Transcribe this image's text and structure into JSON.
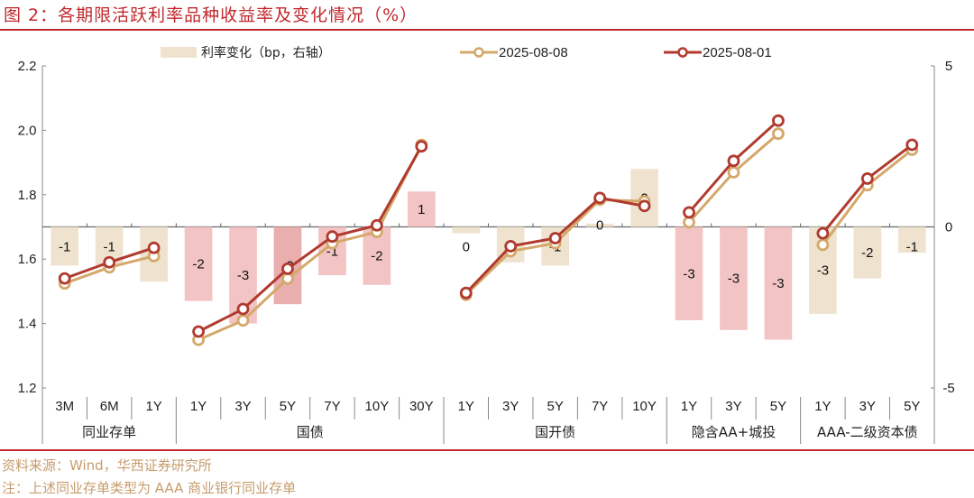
{
  "title": "图 2：各期限活跃利率品种收益率及变化情况（%）",
  "source": "资料来源：Wind，华西证券研究所",
  "note": "注：上述同业存单类型为 AAA 商业银行同业存单",
  "colors": {
    "title_red": "#c0282d",
    "series_0808": "#d4a86a",
    "series_0801": "#b03a2e",
    "bar_neutral": "#efe3d0",
    "bar_pink": "#f2c4c4",
    "bar_pink_dark": "#eaaeae",
    "axis": "#888888",
    "footer_text": "#c69c6d"
  },
  "legend": {
    "bar_label": "利率变化（bp，右轴）",
    "series1_label": "2025-08-08",
    "series2_label": "2025-08-01"
  },
  "chart_data": {
    "type": "bar+line",
    "title": "各期限活跃利率品种收益率及变化情况（%）",
    "xlabel": "",
    "ylabel": "",
    "ylim": [
      1.2,
      2.2
    ],
    "y_ticks": [
      "1.2",
      "1.4",
      "1.6",
      "1.8",
      "2.0",
      "2.2"
    ],
    "y2lim": [
      -5,
      5
    ],
    "y2_ticks": [
      "-5",
      "0",
      "5"
    ],
    "groups": [
      {
        "name": "同业存单",
        "categories": [
          "3M",
          "6M",
          "1Y"
        ]
      },
      {
        "name": "国债",
        "categories": [
          "1Y",
          "3Y",
          "5Y",
          "7Y",
          "10Y",
          "30Y"
        ]
      },
      {
        "name": "国开债",
        "categories": [
          "1Y",
          "3Y",
          "5Y",
          "7Y",
          "10Y"
        ]
      },
      {
        "name": "隐含AA+城投",
        "categories": [
          "1Y",
          "3Y",
          "5Y"
        ]
      },
      {
        "name": "AAA-二级资本债",
        "categories": [
          "1Y",
          "3Y",
          "5Y"
        ]
      }
    ],
    "categories": [
      "3M",
      "6M",
      "1Y",
      "1Y",
      "3Y",
      "5Y",
      "7Y",
      "10Y",
      "30Y",
      "1Y",
      "3Y",
      "5Y",
      "7Y",
      "10Y",
      "1Y",
      "3Y",
      "5Y",
      "1Y",
      "3Y",
      "5Y"
    ],
    "series": [
      {
        "name": "利率变化（bp，右轴）",
        "type": "bar",
        "axis": "right",
        "values": [
          -1.2,
          -1.2,
          -1.7,
          -2.3,
          -3.0,
          -2.4,
          -1.5,
          -1.8,
          1.1,
          -0.2,
          -1.1,
          -1.2,
          0.1,
          1.8,
          -2.9,
          -3.2,
          -3.5,
          -2.7,
          -1.6,
          -0.8
        ],
        "labels": [
          "-1",
          "-1",
          "-2",
          "-2",
          "-3",
          "-2",
          "-1",
          "-2",
          "1",
          "0",
          "-1",
          "-1",
          "0",
          "2",
          "-3",
          "-3",
          "-3",
          "-3",
          "-2",
          "-1"
        ]
      },
      {
        "name": "2025-08-08",
        "type": "line",
        "axis": "left",
        "values": [
          1.53,
          1.58,
          1.615,
          1.355,
          1.415,
          1.545,
          1.655,
          1.69,
          1.96,
          1.495,
          1.63,
          1.655,
          1.79,
          1.785,
          1.72,
          1.875,
          1.995,
          1.65,
          1.835,
          1.945
        ]
      },
      {
        "name": "2025-08-01",
        "type": "line",
        "axis": "left",
        "values": [
          1.54,
          1.59,
          1.635,
          1.375,
          1.445,
          1.57,
          1.67,
          1.705,
          1.95,
          1.495,
          1.64,
          1.665,
          1.79,
          1.765,
          1.745,
          1.905,
          2.03,
          1.68,
          1.85,
          1.955
        ]
      }
    ],
    "grid": false,
    "legend_position": "top"
  }
}
